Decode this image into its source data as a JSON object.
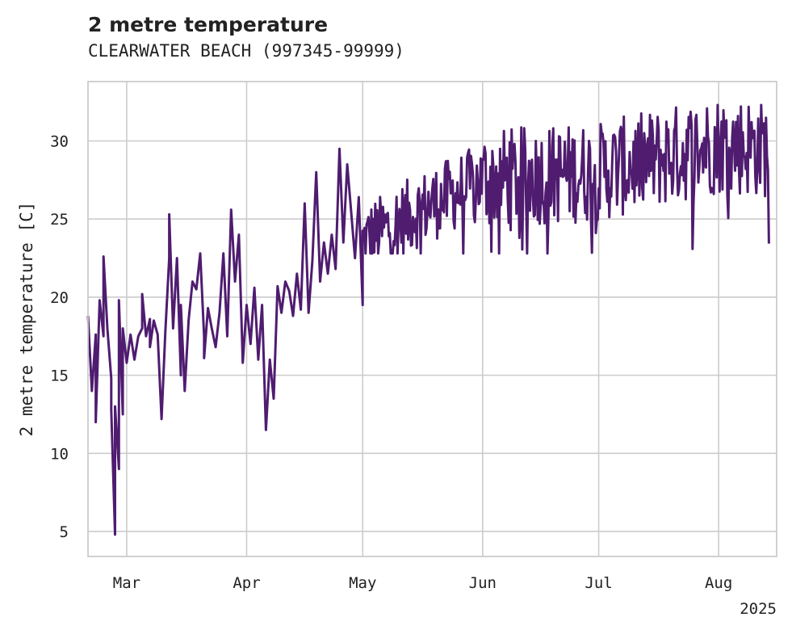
{
  "chart_data": {
    "type": "line",
    "title": "2 metre temperature",
    "subtitle": "CLEARWATER BEACH (997345-99999)",
    "ylabel": "2 metre temperature [C]",
    "xlabel": "",
    "x_range": [
      "2025-02-19",
      "2025-08-16"
    ],
    "ylim": [
      3.4,
      33.8
    ],
    "y_ticks": [
      5,
      10,
      15,
      20,
      25,
      30
    ],
    "x_ticks": [
      {
        "label": "Mar",
        "date": "2025-03-01"
      },
      {
        "label": "Apr",
        "date": "2025-04-01"
      },
      {
        "label": "May",
        "date": "2025-05-01"
      },
      {
        "label": "Jun",
        "date": "2025-06-01"
      },
      {
        "label": "Jul",
        "date": "2025-07-01"
      },
      {
        "label": "Aug",
        "date": "2025-08-01"
      }
    ],
    "year_label": "2025",
    "grid": true,
    "line_color": "#4f1c70",
    "series": [
      {
        "points": [
          [
            "2025-02-19",
            18.8
          ],
          [
            "2025-02-20",
            14.0
          ],
          [
            "2025-02-21",
            17.6
          ],
          [
            "2025-02-21",
            12.0
          ],
          [
            "2025-02-22",
            19.8
          ],
          [
            "2025-02-23",
            17.5
          ],
          [
            "2025-02-23",
            22.6
          ],
          [
            "2025-02-24",
            18.0
          ],
          [
            "2025-02-25",
            14.8
          ],
          [
            "2025-02-25",
            12.8
          ],
          [
            "2025-02-26",
            4.8
          ],
          [
            "2025-02-26",
            13.0
          ],
          [
            "2025-02-27",
            9.0
          ],
          [
            "2025-02-27",
            19.8
          ],
          [
            "2025-02-28",
            12.5
          ],
          [
            "2025-02-28",
            18.0
          ],
          [
            "2025-03-01",
            15.8
          ],
          [
            "2025-03-02",
            17.6
          ],
          [
            "2025-03-03",
            16.0
          ],
          [
            "2025-03-04",
            17.5
          ],
          [
            "2025-03-05",
            18.0
          ],
          [
            "2025-03-05",
            20.2
          ],
          [
            "2025-03-06",
            17.5
          ],
          [
            "2025-03-07",
            18.6
          ],
          [
            "2025-03-07",
            16.8
          ],
          [
            "2025-03-08",
            18.5
          ],
          [
            "2025-03-09",
            17.6
          ],
          [
            "2025-03-10",
            12.2
          ],
          [
            "2025-03-11",
            17.8
          ],
          [
            "2025-03-12",
            22.5
          ],
          [
            "2025-03-12",
            25.3
          ],
          [
            "2025-03-13",
            18.0
          ],
          [
            "2025-03-14",
            22.5
          ],
          [
            "2025-03-15",
            15.0
          ],
          [
            "2025-03-15",
            19.5
          ],
          [
            "2025-03-16",
            14.0
          ],
          [
            "2025-03-17",
            18.5
          ],
          [
            "2025-03-18",
            21.0
          ],
          [
            "2025-03-19",
            20.5
          ],
          [
            "2025-03-20",
            22.8
          ],
          [
            "2025-03-21",
            17.5
          ],
          [
            "2025-03-21",
            16.1
          ],
          [
            "2025-03-22",
            19.3
          ],
          [
            "2025-03-23",
            18.0
          ],
          [
            "2025-03-24",
            16.8
          ],
          [
            "2025-03-25",
            19.0
          ],
          [
            "2025-03-26",
            22.8
          ],
          [
            "2025-03-27",
            17.5
          ],
          [
            "2025-03-28",
            25.6
          ],
          [
            "2025-03-29",
            21.0
          ],
          [
            "2025-03-30",
            24.0
          ],
          [
            "2025-03-31",
            15.8
          ],
          [
            "2025-04-01",
            19.5
          ],
          [
            "2025-04-02",
            17.0
          ],
          [
            "2025-04-03",
            20.6
          ],
          [
            "2025-04-04",
            16.0
          ],
          [
            "2025-04-05",
            19.5
          ],
          [
            "2025-04-06",
            11.5
          ],
          [
            "2025-04-07",
            16.0
          ],
          [
            "2025-04-08",
            13.5
          ],
          [
            "2025-04-09",
            20.7
          ],
          [
            "2025-04-10",
            19.0
          ],
          [
            "2025-04-11",
            21.0
          ],
          [
            "2025-04-12",
            20.4
          ],
          [
            "2025-04-13",
            18.8
          ],
          [
            "2025-04-14",
            21.5
          ],
          [
            "2025-04-15",
            19.2
          ],
          [
            "2025-04-16",
            26.0
          ],
          [
            "2025-04-17",
            19.0
          ],
          [
            "2025-04-18",
            22.3
          ],
          [
            "2025-04-19",
            28.0
          ],
          [
            "2025-04-20",
            21.0
          ],
          [
            "2025-04-21",
            23.5
          ],
          [
            "2025-04-22",
            21.5
          ],
          [
            "2025-04-23",
            24.0
          ],
          [
            "2025-04-24",
            21.8
          ],
          [
            "2025-04-25",
            29.5
          ],
          [
            "2025-04-26",
            23.5
          ],
          [
            "2025-04-27",
            28.5
          ],
          [
            "2025-04-28",
            25.5
          ],
          [
            "2025-04-29",
            22.5
          ],
          [
            "2025-04-30",
            26.4
          ],
          [
            "2025-05-01",
            19.5
          ]
        ]
      }
    ]
  },
  "generated_tail": {
    "start_date": "2025-05-01",
    "end_date": "2025-08-14"
  }
}
